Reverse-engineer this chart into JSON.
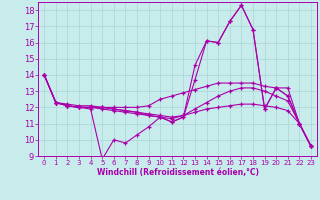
{
  "title": "",
  "xlabel": "Windchill (Refroidissement éolien,°C)",
  "ylabel": "",
  "bg_color": "#c8ecec",
  "grid_color": "#b0d8d8",
  "line_color": "#aa00aa",
  "xlim": [
    -0.5,
    23.5
  ],
  "ylim": [
    9,
    18.5
  ],
  "xticks": [
    0,
    1,
    2,
    3,
    4,
    5,
    6,
    7,
    8,
    9,
    10,
    11,
    12,
    13,
    14,
    15,
    16,
    17,
    18,
    19,
    20,
    21,
    22,
    23
  ],
  "yticks": [
    9,
    10,
    11,
    12,
    13,
    14,
    15,
    16,
    17,
    18
  ],
  "series": [
    [
      14.0,
      12.3,
      12.1,
      12.0,
      11.9,
      8.8,
      10.0,
      9.8,
      10.3,
      10.8,
      11.4,
      11.1,
      11.4,
      13.7,
      16.1,
      16.0,
      17.3,
      18.3,
      16.8,
      11.9,
      13.2,
      12.7,
      11.0,
      9.6
    ],
    [
      14.0,
      12.3,
      12.1,
      12.0,
      12.0,
      12.0,
      12.0,
      12.0,
      12.0,
      12.1,
      12.5,
      12.7,
      12.9,
      13.1,
      13.3,
      13.5,
      13.5,
      13.5,
      13.5,
      13.3,
      13.2,
      13.2,
      11.0,
      9.6
    ],
    [
      14.0,
      12.3,
      12.1,
      12.0,
      12.0,
      11.9,
      11.8,
      11.7,
      11.6,
      11.5,
      11.4,
      11.3,
      11.5,
      11.9,
      12.3,
      12.7,
      13.0,
      13.2,
      13.2,
      13.0,
      12.7,
      12.4,
      11.0,
      9.6
    ],
    [
      14.0,
      12.3,
      12.1,
      12.0,
      12.0,
      12.0,
      11.9,
      11.8,
      11.7,
      11.5,
      11.4,
      11.1,
      11.4,
      14.6,
      16.1,
      16.0,
      17.3,
      18.3,
      16.8,
      11.9,
      13.2,
      12.7,
      11.0,
      9.6
    ],
    [
      14.0,
      12.3,
      12.2,
      12.1,
      12.1,
      12.0,
      11.9,
      11.8,
      11.7,
      11.6,
      11.5,
      11.4,
      11.5,
      11.7,
      11.9,
      12.0,
      12.1,
      12.2,
      12.2,
      12.1,
      12.0,
      11.8,
      11.0,
      9.6
    ]
  ]
}
